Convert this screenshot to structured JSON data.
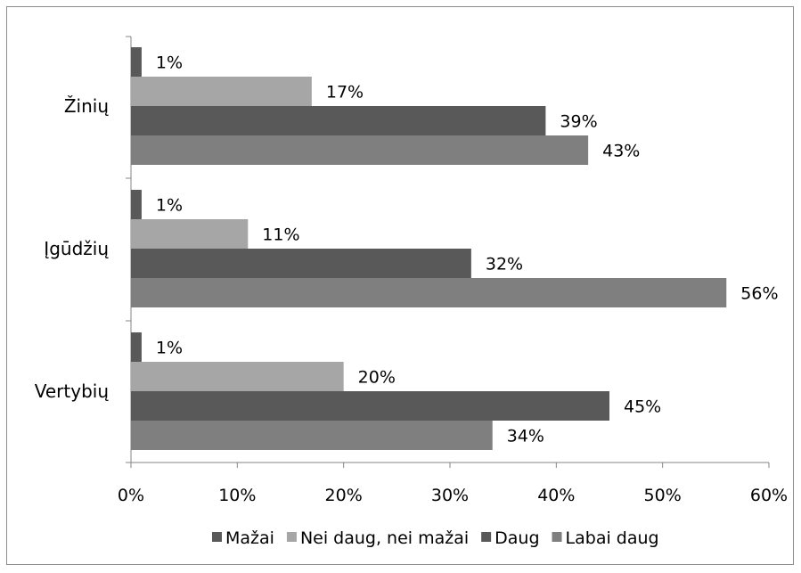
{
  "chart_data": {
    "type": "bar",
    "orientation": "horizontal",
    "categories": [
      "Žinių",
      "Įgūdžių",
      "Vertybių"
    ],
    "series": [
      {
        "name": "Mažai",
        "values": [
          1,
          1,
          1
        ],
        "labels": [
          "1%",
          "1%",
          "1%"
        ],
        "color": "#595959"
      },
      {
        "name": "Nei daug, nei mažai",
        "values": [
          17,
          11,
          20
        ],
        "labels": [
          "17%",
          "11%",
          "20%"
        ],
        "color": "#a6a6a6"
      },
      {
        "name": "Daug",
        "values": [
          39,
          32,
          45
        ],
        "labels": [
          "39%",
          "32%",
          "45%"
        ],
        "color": "#595959"
      },
      {
        "name": "Labai daug",
        "values": [
          43,
          56,
          34
        ],
        "labels": [
          "43%",
          "56%",
          "34%"
        ],
        "color": "#7f7f7f"
      }
    ],
    "xlim": [
      0,
      60
    ],
    "xticks": [
      0,
      10,
      20,
      30,
      40,
      50,
      60
    ],
    "xtick_labels": [
      "0%",
      "10%",
      "20%",
      "30%",
      "40%",
      "50%",
      "60%"
    ],
    "grid": false,
    "legend": "bottom"
  }
}
